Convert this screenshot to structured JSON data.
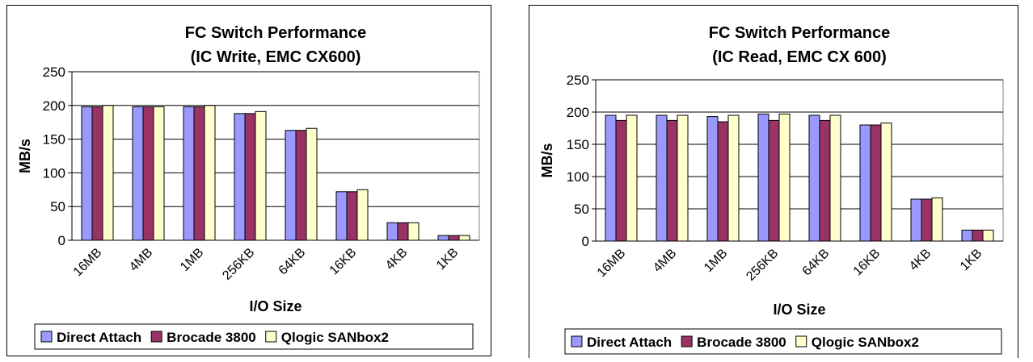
{
  "chart_data": [
    {
      "type": "bar",
      "title_line1": "FC Switch Performance",
      "title_line2": "(IC Write, EMC CX600)",
      "xlabel": "I/O Size",
      "ylabel": "MB/s",
      "ylim": [
        0,
        250
      ],
      "yticks": [
        0,
        50,
        100,
        150,
        200,
        250
      ],
      "grid": true,
      "legend_position": "bottom",
      "categories": [
        "16MB",
        "4MB",
        "1MB",
        "256KB",
        "64KB",
        "16KB",
        "4KB",
        "1KB"
      ],
      "series": [
        {
          "name": "Direct Attach",
          "color": "#9999ff",
          "values": [
            198,
            198,
            198,
            188,
            163,
            72,
            26,
            7
          ]
        },
        {
          "name": "Brocade 3800",
          "color": "#993366",
          "values": [
            198,
            198,
            198,
            188,
            163,
            72,
            26,
            7
          ]
        },
        {
          "name": "Qlogic SANbox2",
          "color": "#ffffcc",
          "values": [
            200,
            198,
            200,
            191,
            166,
            75,
            26,
            7
          ]
        }
      ]
    },
    {
      "type": "bar",
      "title_line1": "FC Switch Performance",
      "title_line2": "(IC Read, EMC CX 600)",
      "xlabel": "I/O Size",
      "ylabel": "MB/s",
      "ylim": [
        0,
        250
      ],
      "yticks": [
        0,
        50,
        100,
        150,
        200,
        250
      ],
      "grid": true,
      "legend_position": "bottom",
      "categories": [
        "16MB",
        "4MB",
        "1MB",
        "256KB",
        "64KB",
        "16KB",
        "4KB",
        "1KB"
      ],
      "series": [
        {
          "name": "Direct Attach",
          "color": "#9999ff",
          "values": [
            195,
            195,
            193,
            197,
            195,
            180,
            65,
            17
          ]
        },
        {
          "name": "Brocade 3800",
          "color": "#993366",
          "values": [
            187,
            187,
            185,
            187,
            187,
            180,
            65,
            17
          ]
        },
        {
          "name": "Qlogic SANbox2",
          "color": "#ffffcc",
          "values": [
            195,
            195,
            195,
            197,
            195,
            183,
            67,
            17
          ]
        }
      ]
    }
  ]
}
